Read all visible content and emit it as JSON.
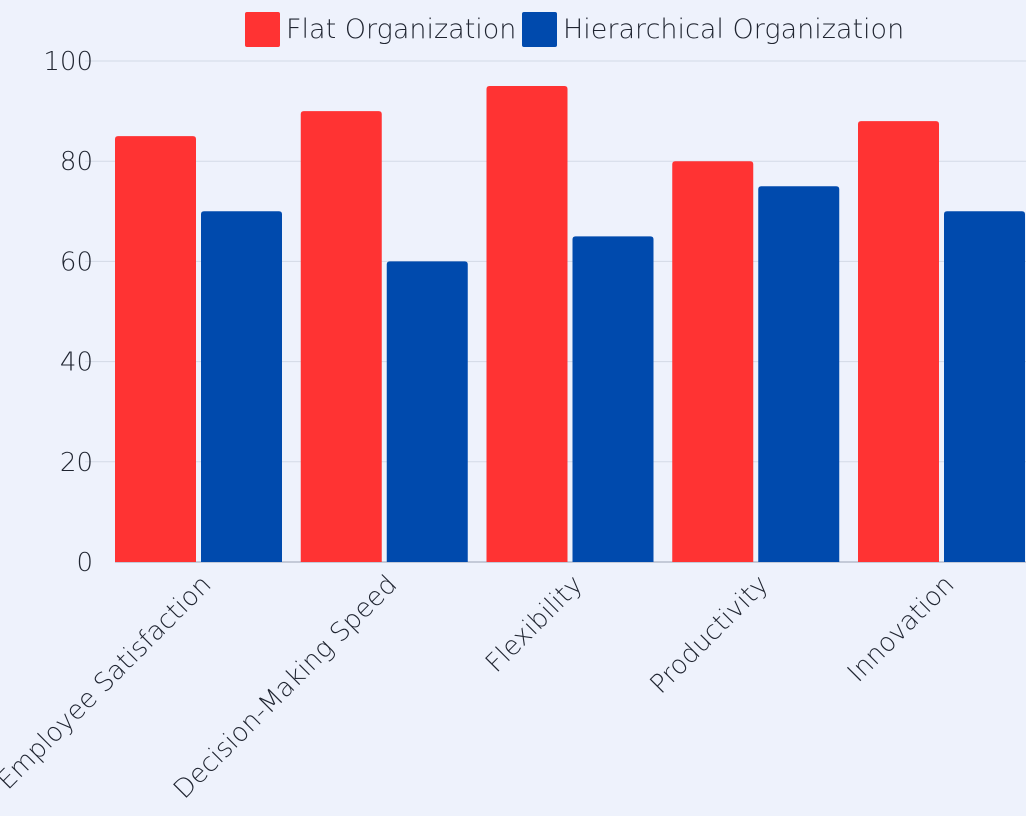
{
  "chart_data": {
    "type": "bar",
    "categories": [
      "Employee Satisfaction",
      "Decision-Making Speed",
      "Flexibility",
      "Productivity",
      "Innovation"
    ],
    "series": [
      {
        "name": "Flat Organization",
        "values": [
          85,
          90,
          95,
          80,
          88
        ],
        "color": "#ff3333"
      },
      {
        "name": "Hierarchical Organization",
        "values": [
          70,
          60,
          65,
          75,
          70
        ],
        "color": "#004aad"
      }
    ],
    "yticks": [
      "0",
      "20",
      "40",
      "60",
      "80",
      "100"
    ],
    "ylim": [
      0,
      100
    ],
    "grid": true,
    "legend_position": "top"
  }
}
